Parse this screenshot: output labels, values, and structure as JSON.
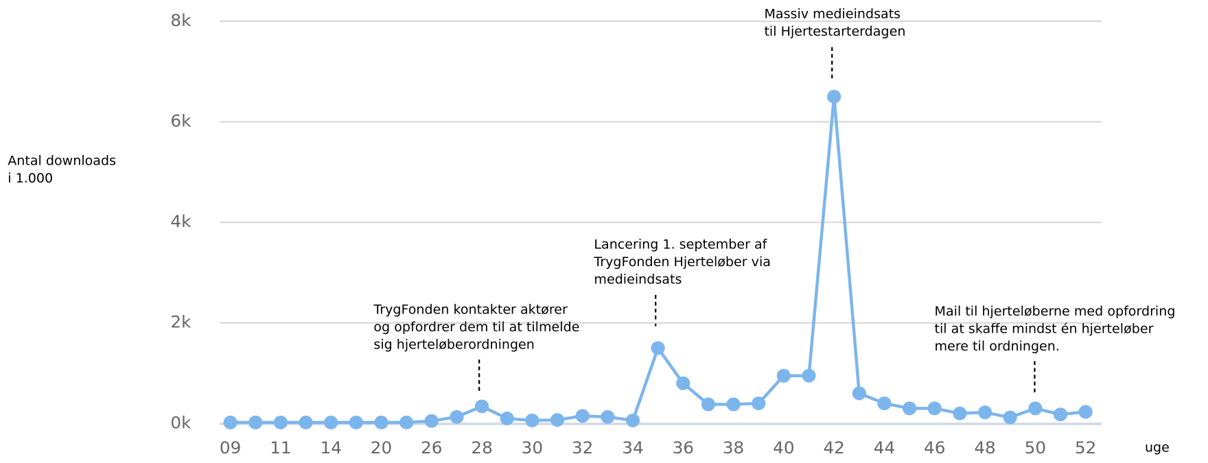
{
  "chart_data": {
    "type": "line",
    "y_axis_title": [
      "Antal downloads",
      "i 1.000"
    ],
    "x_axis_title": "uge",
    "categories": [
      "09",
      null,
      "11",
      null,
      "14",
      null,
      "20",
      null,
      "26",
      null,
      "28",
      null,
      "30",
      null,
      "32",
      null,
      "34",
      null,
      "36",
      null,
      "38",
      null,
      "40",
      null,
      "42",
      null,
      "44",
      null,
      "46",
      null,
      "48",
      null,
      "50",
      null,
      "52"
    ],
    "series": [
      {
        "color": "#7cb5ec",
        "values": [
          20,
          20,
          20,
          20,
          20,
          20,
          20,
          20,
          50,
          130,
          340,
          100,
          60,
          70,
          150,
          130,
          60,
          1500,
          800,
          380,
          380,
          400,
          950,
          950,
          6500,
          600,
          400,
          300,
          300,
          200,
          220,
          120,
          300,
          180,
          230
        ]
      }
    ],
    "ylim": [
      0,
      8000
    ],
    "yticks": [
      {
        "value": 0,
        "label": "0k"
      },
      {
        "value": 2000,
        "label": "2k"
      },
      {
        "value": 4000,
        "label": "4k"
      },
      {
        "value": 6000,
        "label": "6k"
      },
      {
        "value": 8000,
        "label": "8k"
      }
    ],
    "grid": true,
    "annotations": [
      [
        "TrygFonden kontakter aktører",
        "og opfordrer dem til at tilmelde",
        "sig hjerteløberordningen"
      ],
      [
        "Lancering 1. september af",
        "TrygFonden Hjerteløber via",
        "medieindsats"
      ],
      [
        "Massiv medieindsats",
        "til Hjertestarterdagen"
      ],
      [
        "Mail til hjerteløberne med opfordring",
        "til at skaffe mindst én hjerteløber",
        " mere til ordningen."
      ]
    ]
  }
}
